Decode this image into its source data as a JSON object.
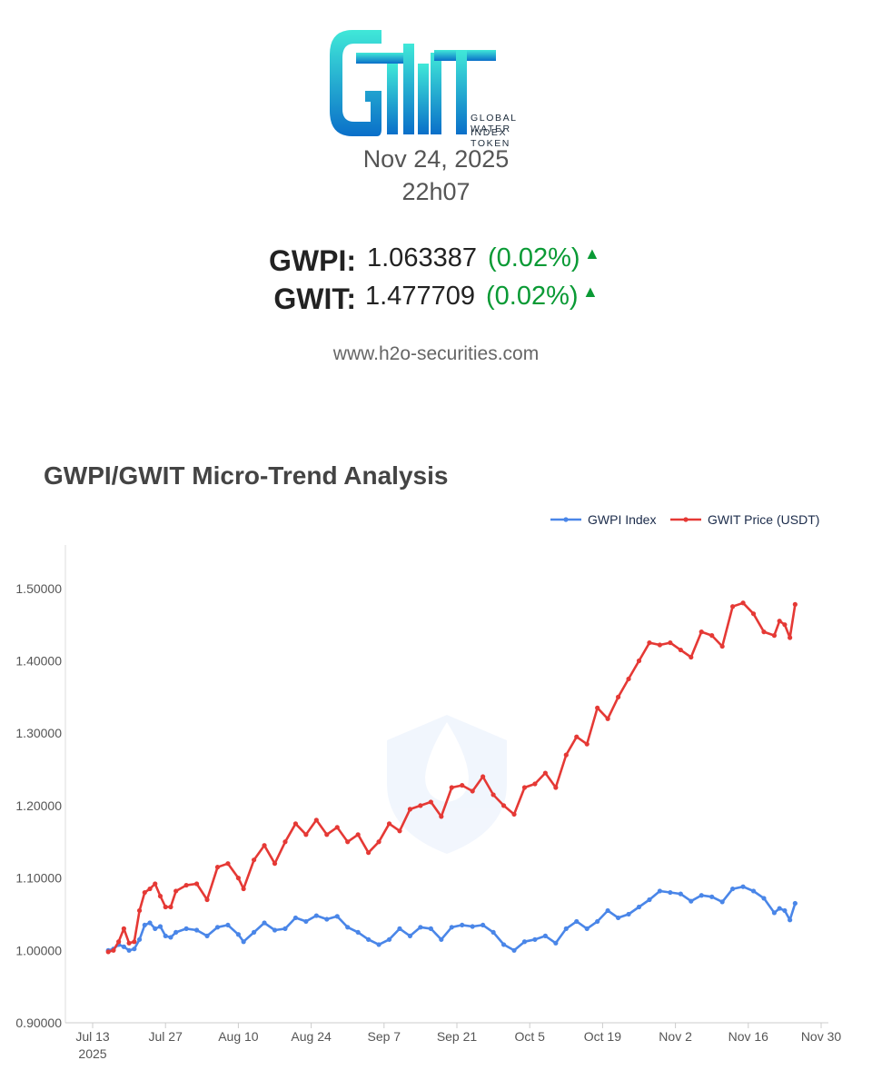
{
  "header": {
    "logo_line1": "GLOBAL WATER",
    "logo_line2": "INDEX TOKEN",
    "date": "Nov 24, 2025",
    "time": "22h07"
  },
  "tickers": [
    {
      "symbol": "GWPI:",
      "value": "1.063387",
      "change": "(0.02%)",
      "arrow": "▲"
    },
    {
      "symbol": "GWIT:",
      "value": "1.477709",
      "change": "(0.02%)",
      "arrow": "▲"
    }
  ],
  "website": "www.h2o-securities.com",
  "colors": {
    "gwpi": "#4a86e8",
    "gwit": "#e53935",
    "up": "#0a9a35"
  },
  "chart_data": {
    "type": "line",
    "title": "GWPI/GWIT Micro-Trend Analysis",
    "legend_position": "top-right",
    "ylim": [
      0.9,
      1.56
    ],
    "xlim": [
      "2025-07-13",
      "2025-11-30"
    ],
    "y_ticks": [
      "0.90000",
      "1.00000",
      "1.10000",
      "1.20000",
      "1.30000",
      "1.40000",
      "1.50000"
    ],
    "x_ticks": [
      "Jul 13",
      "Jul 27",
      "Aug 10",
      "Aug 24",
      "Sep 7",
      "Sep 21",
      "Oct 5",
      "Oct 19",
      "Nov 2",
      "Nov 16",
      "Nov 30"
    ],
    "x_tick_year": "2025",
    "grid": false,
    "series": [
      {
        "name": "GWPI Index",
        "color": "#4a86e8",
        "points": [
          [
            "2025-07-16",
            1.0
          ],
          [
            "2025-07-17",
            1.002
          ],
          [
            "2025-07-18",
            1.008
          ],
          [
            "2025-07-19",
            1.005
          ],
          [
            "2025-07-20",
            1.0
          ],
          [
            "2025-07-21",
            1.002
          ],
          [
            "2025-07-22",
            1.015
          ],
          [
            "2025-07-23",
            1.035
          ],
          [
            "2025-07-24",
            1.038
          ],
          [
            "2025-07-25",
            1.03
          ],
          [
            "2025-07-26",
            1.033
          ],
          [
            "2025-07-27",
            1.02
          ],
          [
            "2025-07-28",
            1.018
          ],
          [
            "2025-07-29",
            1.025
          ],
          [
            "2025-07-31",
            1.03
          ],
          [
            "2025-08-02",
            1.028
          ],
          [
            "2025-08-04",
            1.02
          ],
          [
            "2025-08-06",
            1.032
          ],
          [
            "2025-08-08",
            1.035
          ],
          [
            "2025-08-10",
            1.022
          ],
          [
            "2025-08-11",
            1.012
          ],
          [
            "2025-08-13",
            1.025
          ],
          [
            "2025-08-15",
            1.038
          ],
          [
            "2025-08-17",
            1.028
          ],
          [
            "2025-08-19",
            1.03
          ],
          [
            "2025-08-21",
            1.045
          ],
          [
            "2025-08-23",
            1.04
          ],
          [
            "2025-08-25",
            1.048
          ],
          [
            "2025-08-27",
            1.043
          ],
          [
            "2025-08-29",
            1.047
          ],
          [
            "2025-08-31",
            1.032
          ],
          [
            "2025-09-02",
            1.025
          ],
          [
            "2025-09-04",
            1.015
          ],
          [
            "2025-09-06",
            1.008
          ],
          [
            "2025-09-08",
            1.015
          ],
          [
            "2025-09-10",
            1.03
          ],
          [
            "2025-09-12",
            1.02
          ],
          [
            "2025-09-14",
            1.032
          ],
          [
            "2025-09-16",
            1.03
          ],
          [
            "2025-09-18",
            1.015
          ],
          [
            "2025-09-20",
            1.032
          ],
          [
            "2025-09-22",
            1.035
          ],
          [
            "2025-09-24",
            1.033
          ],
          [
            "2025-09-26",
            1.035
          ],
          [
            "2025-09-28",
            1.025
          ],
          [
            "2025-09-30",
            1.008
          ],
          [
            "2025-10-02",
            1.0
          ],
          [
            "2025-10-04",
            1.012
          ],
          [
            "2025-10-06",
            1.015
          ],
          [
            "2025-10-08",
            1.02
          ],
          [
            "2025-10-10",
            1.01
          ],
          [
            "2025-10-12",
            1.03
          ],
          [
            "2025-10-14",
            1.04
          ],
          [
            "2025-10-16",
            1.03
          ],
          [
            "2025-10-18",
            1.04
          ],
          [
            "2025-10-20",
            1.055
          ],
          [
            "2025-10-22",
            1.045
          ],
          [
            "2025-10-24",
            1.05
          ],
          [
            "2025-10-26",
            1.06
          ],
          [
            "2025-10-28",
            1.07
          ],
          [
            "2025-10-30",
            1.082
          ],
          [
            "2025-11-01",
            1.08
          ],
          [
            "2025-11-03",
            1.078
          ],
          [
            "2025-11-05",
            1.068
          ],
          [
            "2025-11-07",
            1.076
          ],
          [
            "2025-11-09",
            1.074
          ],
          [
            "2025-11-11",
            1.067
          ],
          [
            "2025-11-13",
            1.085
          ],
          [
            "2025-11-15",
            1.088
          ],
          [
            "2025-11-17",
            1.082
          ],
          [
            "2025-11-19",
            1.072
          ],
          [
            "2025-11-21",
            1.052
          ],
          [
            "2025-11-22",
            1.058
          ],
          [
            "2025-11-23",
            1.055
          ],
          [
            "2025-11-24",
            1.042
          ],
          [
            "2025-11-25",
            1.065
          ]
        ]
      },
      {
        "name": "GWIT Price (USDT)",
        "color": "#e53935",
        "points": [
          [
            "2025-07-16",
            0.998
          ],
          [
            "2025-07-17",
            1.0
          ],
          [
            "2025-07-18",
            1.012
          ],
          [
            "2025-07-19",
            1.03
          ],
          [
            "2025-07-20",
            1.01
          ],
          [
            "2025-07-21",
            1.012
          ],
          [
            "2025-07-22",
            1.055
          ],
          [
            "2025-07-23",
            1.08
          ],
          [
            "2025-07-24",
            1.085
          ],
          [
            "2025-07-25",
            1.092
          ],
          [
            "2025-07-26",
            1.075
          ],
          [
            "2025-07-27",
            1.06
          ],
          [
            "2025-07-28",
            1.06
          ],
          [
            "2025-07-29",
            1.082
          ],
          [
            "2025-07-31",
            1.09
          ],
          [
            "2025-08-02",
            1.092
          ],
          [
            "2025-08-04",
            1.07
          ],
          [
            "2025-08-06",
            1.115
          ],
          [
            "2025-08-08",
            1.12
          ],
          [
            "2025-08-10",
            1.1
          ],
          [
            "2025-08-11",
            1.085
          ],
          [
            "2025-08-13",
            1.125
          ],
          [
            "2025-08-15",
            1.145
          ],
          [
            "2025-08-17",
            1.12
          ],
          [
            "2025-08-19",
            1.15
          ],
          [
            "2025-08-21",
            1.175
          ],
          [
            "2025-08-23",
            1.16
          ],
          [
            "2025-08-25",
            1.18
          ],
          [
            "2025-08-27",
            1.16
          ],
          [
            "2025-08-29",
            1.17
          ],
          [
            "2025-08-31",
            1.15
          ],
          [
            "2025-09-02",
            1.16
          ],
          [
            "2025-09-04",
            1.135
          ],
          [
            "2025-09-06",
            1.15
          ],
          [
            "2025-09-08",
            1.175
          ],
          [
            "2025-09-10",
            1.165
          ],
          [
            "2025-09-12",
            1.195
          ],
          [
            "2025-09-14",
            1.2
          ],
          [
            "2025-09-16",
            1.205
          ],
          [
            "2025-09-18",
            1.185
          ],
          [
            "2025-09-20",
            1.225
          ],
          [
            "2025-09-22",
            1.228
          ],
          [
            "2025-09-24",
            1.22
          ],
          [
            "2025-09-26",
            1.24
          ],
          [
            "2025-09-28",
            1.215
          ],
          [
            "2025-09-30",
            1.2
          ],
          [
            "2025-10-02",
            1.188
          ],
          [
            "2025-10-04",
            1.225
          ],
          [
            "2025-10-06",
            1.23
          ],
          [
            "2025-10-08",
            1.245
          ],
          [
            "2025-10-10",
            1.225
          ],
          [
            "2025-10-12",
            1.27
          ],
          [
            "2025-10-14",
            1.295
          ],
          [
            "2025-10-16",
            1.285
          ],
          [
            "2025-10-18",
            1.335
          ],
          [
            "2025-10-20",
            1.32
          ],
          [
            "2025-10-22",
            1.35
          ],
          [
            "2025-10-24",
            1.375
          ],
          [
            "2025-10-26",
            1.4
          ],
          [
            "2025-10-28",
            1.425
          ],
          [
            "2025-10-30",
            1.422
          ],
          [
            "2025-11-01",
            1.425
          ],
          [
            "2025-11-03",
            1.415
          ],
          [
            "2025-11-05",
            1.405
          ],
          [
            "2025-11-07",
            1.44
          ],
          [
            "2025-11-09",
            1.435
          ],
          [
            "2025-11-11",
            1.42
          ],
          [
            "2025-11-13",
            1.475
          ],
          [
            "2025-11-15",
            1.48
          ],
          [
            "2025-11-17",
            1.465
          ],
          [
            "2025-11-19",
            1.44
          ],
          [
            "2025-11-21",
            1.435
          ],
          [
            "2025-11-22",
            1.455
          ],
          [
            "2025-11-23",
            1.45
          ],
          [
            "2025-11-24",
            1.432
          ],
          [
            "2025-11-25",
            1.478
          ]
        ]
      }
    ]
  }
}
